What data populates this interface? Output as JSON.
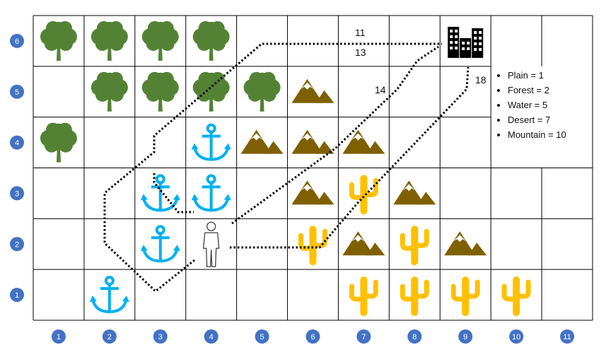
{
  "grid": {
    "columns": [
      "1",
      "2",
      "3",
      "4",
      "5",
      "6",
      "7",
      "8",
      "9",
      "10",
      "11"
    ],
    "rows": [
      "6",
      "5",
      "4",
      "3",
      "2",
      "1"
    ],
    "badge_color": "#4472c4"
  },
  "cells": [
    {
      "col": 1,
      "row": 6,
      "type": "forest"
    },
    {
      "col": 2,
      "row": 6,
      "type": "forest"
    },
    {
      "col": 3,
      "row": 6,
      "type": "forest"
    },
    {
      "col": 4,
      "row": 6,
      "type": "forest"
    },
    {
      "col": 9,
      "row": 6,
      "type": "city"
    },
    {
      "col": 2,
      "row": 5,
      "type": "forest"
    },
    {
      "col": 3,
      "row": 5,
      "type": "forest"
    },
    {
      "col": 4,
      "row": 5,
      "type": "forest"
    },
    {
      "col": 5,
      "row": 5,
      "type": "forest"
    },
    {
      "col": 6,
      "row": 5,
      "type": "mountain"
    },
    {
      "col": 1,
      "row": 4,
      "type": "forest"
    },
    {
      "col": 4,
      "row": 4,
      "type": "water"
    },
    {
      "col": 5,
      "row": 4,
      "type": "mountain"
    },
    {
      "col": 6,
      "row": 4,
      "type": "mountain"
    },
    {
      "col": 7,
      "row": 4,
      "type": "mountain"
    },
    {
      "col": 3,
      "row": 3,
      "type": "water"
    },
    {
      "col": 4,
      "row": 3,
      "type": "water"
    },
    {
      "col": 6,
      "row": 3,
      "type": "mountain"
    },
    {
      "col": 7,
      "row": 3,
      "type": "desert"
    },
    {
      "col": 8,
      "row": 3,
      "type": "mountain"
    },
    {
      "col": 3,
      "row": 2,
      "type": "water"
    },
    {
      "col": 4,
      "row": 2,
      "type": "person"
    },
    {
      "col": 6,
      "row": 2,
      "type": "desert"
    },
    {
      "col": 7,
      "row": 2,
      "type": "mountain"
    },
    {
      "col": 8,
      "row": 2,
      "type": "desert"
    },
    {
      "col": 9,
      "row": 2,
      "type": "mountain"
    },
    {
      "col": 2,
      "row": 1,
      "type": "water"
    },
    {
      "col": 7,
      "row": 1,
      "type": "desert"
    },
    {
      "col": 8,
      "row": 1,
      "type": "desert"
    },
    {
      "col": 9,
      "row": 1,
      "type": "desert"
    },
    {
      "col": 10,
      "row": 1,
      "type": "desert"
    }
  ],
  "path_costs": [
    "11",
    "13",
    "14",
    "18"
  ],
  "legend": [
    "Plain = 1",
    "Forest = 2",
    "Water = 5",
    "Desert = 7",
    "Mountain = 10"
  ],
  "icons": {
    "forest": "tree-icon",
    "mountain": "mountain-icon",
    "water": "anchor-icon",
    "desert": "cactus-icon",
    "city": "city-buildings-icon",
    "person": "person-icon"
  },
  "colors": {
    "forest": "#548235",
    "mountain": "#7f6000",
    "water": "#00b0f0",
    "desert": "#ffc000",
    "city": "#000000",
    "grid_line": "#000000"
  }
}
